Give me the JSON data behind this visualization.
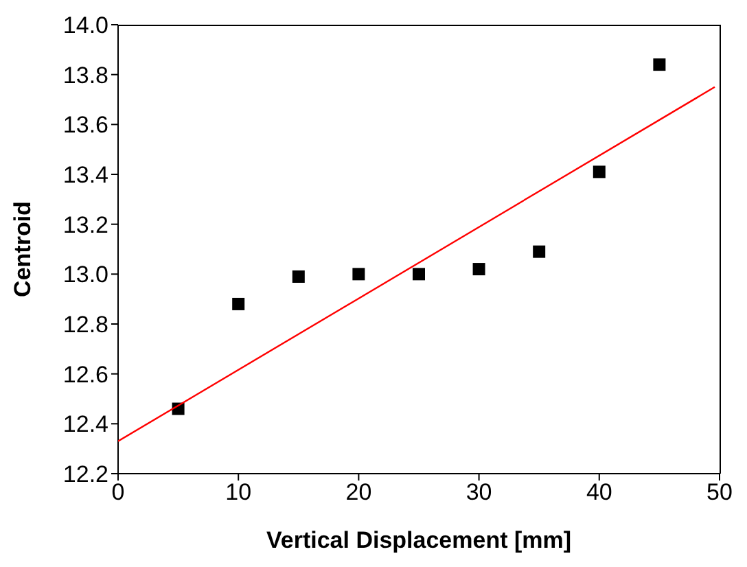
{
  "chart_data": {
    "type": "scatter",
    "xlabel": "Vertical Displacement [mm]",
    "ylabel": "Centroid",
    "x": [
      5,
      10,
      15,
      20,
      25,
      30,
      35,
      40,
      45
    ],
    "series": [
      {
        "type": "scatter",
        "color": "#000000",
        "marker": "square",
        "values": [
          12.46,
          12.88,
          12.99,
          13.0,
          13.0,
          13.02,
          13.09,
          13.41,
          13.84
        ]
      },
      {
        "type": "line",
        "color": "#ff0000",
        "x": [
          0,
          49.6
        ],
        "values": [
          12.33,
          13.75
        ]
      }
    ],
    "xlim": [
      0,
      50
    ],
    "xticks": [
      0,
      10,
      20,
      30,
      40,
      50
    ],
    "ylim": [
      12.2,
      14.0
    ],
    "yticks": [
      12.2,
      12.4,
      12.6,
      12.8,
      {
        "value": 13,
        "label": "13.0"
      },
      13.2,
      13.4,
      13.6,
      13.8,
      {
        "value": 14,
        "label": "14.0"
      }
    ]
  }
}
